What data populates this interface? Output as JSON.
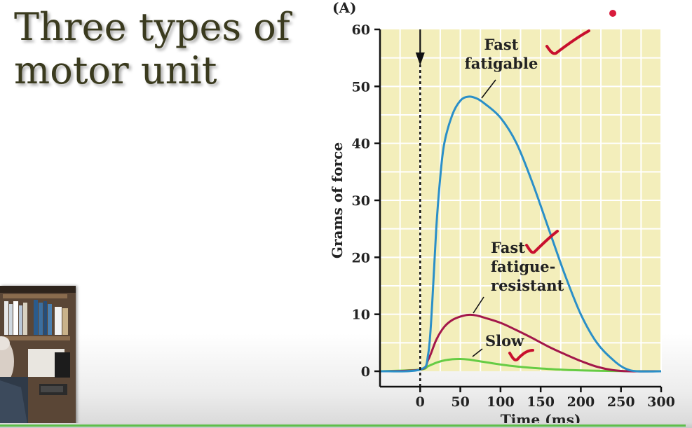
{
  "slide": {
    "title_line1": "Three types of",
    "title_line2": "motor unit"
  },
  "colors": {
    "plot_background": "#f3eebb",
    "grid": "#ffffff",
    "fast_fatigable": "#2a8fc8",
    "fast_fatigue_resistant": "#a3174a",
    "slow": "#66cc44",
    "annotation_check": "#c8102e"
  },
  "chart_data": {
    "type": "line",
    "panel_label": "(A)",
    "xlabel": "Time (ms)",
    "ylabel": "Grams of force",
    "xlim": [
      -50,
      300
    ],
    "ylim": [
      0,
      60
    ],
    "x_ticks": [
      0,
      50,
      100,
      150,
      200,
      250,
      300
    ],
    "y_ticks": [
      0,
      10,
      20,
      30,
      40,
      50,
      60
    ],
    "grid": true,
    "stimulus_marker_x": 0,
    "series": [
      {
        "key": "fast_fatigable",
        "label_lines": [
          "Fast",
          "fatigable"
        ],
        "points": [
          [
            -50,
            0
          ],
          [
            0,
            0.3
          ],
          [
            10,
            3
          ],
          [
            15,
            12
          ],
          [
            20,
            25
          ],
          [
            25,
            34
          ],
          [
            30,
            40
          ],
          [
            40,
            45
          ],
          [
            50,
            47.5
          ],
          [
            60,
            48.2
          ],
          [
            70,
            47.9
          ],
          [
            80,
            47
          ],
          [
            100,
            44.5
          ],
          [
            120,
            40
          ],
          [
            140,
            33
          ],
          [
            160,
            25
          ],
          [
            180,
            17
          ],
          [
            200,
            10
          ],
          [
            220,
            5
          ],
          [
            240,
            2
          ],
          [
            255,
            0.5
          ],
          [
            270,
            0
          ],
          [
            300,
            0
          ]
        ]
      },
      {
        "key": "fast_fatigue_resistant",
        "label_lines": [
          "Fast",
          "fatigue-",
          "resistant"
        ],
        "points": [
          [
            -50,
            0
          ],
          [
            0,
            0.3
          ],
          [
            10,
            2
          ],
          [
            20,
            5.5
          ],
          [
            30,
            7.8
          ],
          [
            40,
            9
          ],
          [
            50,
            9.6
          ],
          [
            60,
            9.9
          ],
          [
            70,
            9.8
          ],
          [
            80,
            9.4
          ],
          [
            100,
            8.5
          ],
          [
            120,
            7.2
          ],
          [
            140,
            5.8
          ],
          [
            160,
            4.3
          ],
          [
            180,
            3
          ],
          [
            200,
            1.8
          ],
          [
            220,
            0.8
          ],
          [
            240,
            0.2
          ],
          [
            260,
            0
          ],
          [
            300,
            0
          ]
        ]
      },
      {
        "key": "slow",
        "label_lines": [
          "Slow"
        ],
        "points": [
          [
            -50,
            0
          ],
          [
            0,
            0.3
          ],
          [
            10,
            0.9
          ],
          [
            20,
            1.5
          ],
          [
            30,
            1.9
          ],
          [
            40,
            2.1
          ],
          [
            50,
            2.15
          ],
          [
            60,
            2.05
          ],
          [
            70,
            1.85
          ],
          [
            90,
            1.4
          ],
          [
            110,
            1.0
          ],
          [
            130,
            0.7
          ],
          [
            160,
            0.4
          ],
          [
            190,
            0.2
          ],
          [
            220,
            0.08
          ],
          [
            250,
            0.02
          ],
          [
            300,
            0
          ]
        ]
      }
    ]
  }
}
